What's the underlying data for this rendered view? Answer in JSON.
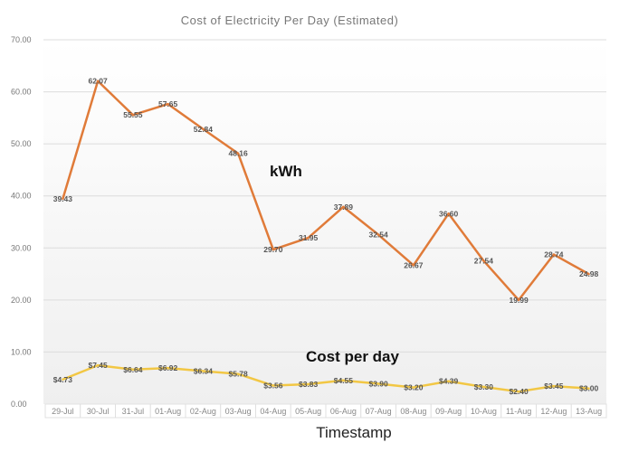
{
  "chart_data": {
    "type": "line",
    "title": "Cost of Electricity Per Day (Estimated)",
    "xlabel": "Timestamp",
    "ylabel": "",
    "ylim": [
      0,
      70
    ],
    "yticks": [
      "0.00",
      "10.00",
      "20.00",
      "30.00",
      "40.00",
      "50.00",
      "60.00",
      "70.00"
    ],
    "grid": true,
    "categories": [
      "29-Jul",
      "30-Jul",
      "31-Jul",
      "01-Aug",
      "02-Aug",
      "03-Aug",
      "04-Aug",
      "05-Aug",
      "06-Aug",
      "07-Aug",
      "08-Aug",
      "09-Aug",
      "10-Aug",
      "11-Aug",
      "12-Aug",
      "13-Aug"
    ],
    "series": [
      {
        "name": "kWh",
        "color": "#e07b39",
        "values": [
          39.43,
          62.07,
          55.55,
          57.65,
          52.84,
          48.16,
          29.7,
          31.95,
          37.89,
          32.54,
          26.67,
          36.6,
          27.54,
          19.99,
          28.74,
          24.98
        ],
        "labels": [
          "39.43",
          "62.07",
          "55.55",
          "57.65",
          "52.84",
          "48.16",
          "29.70",
          "31.95",
          "37.89",
          "32.54",
          "26.67",
          "36.60",
          "27.54",
          "19.99",
          "28.74",
          "24.98"
        ]
      },
      {
        "name": "Cost per day",
        "color": "#f2c744",
        "values": [
          4.73,
          7.45,
          6.64,
          6.92,
          6.34,
          5.78,
          3.56,
          3.83,
          4.55,
          3.9,
          3.2,
          4.39,
          3.3,
          2.4,
          3.45,
          3.0
        ],
        "labels": [
          "$4.73",
          "$7.45",
          "$6.64",
          "$6.92",
          "$6.34",
          "$5.78",
          "$3.56",
          "$3.83",
          "$4.55",
          "$3.90",
          "$3.20",
          "$4.39",
          "$3.30",
          "$2.40",
          "$3.45",
          "$3.00"
        ]
      }
    ]
  }
}
